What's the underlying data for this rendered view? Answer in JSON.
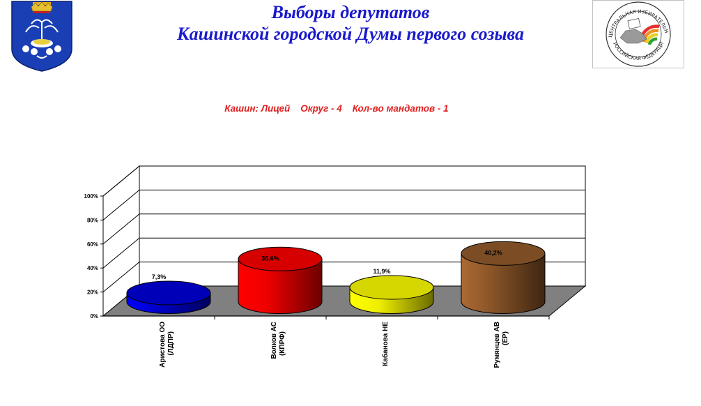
{
  "header": {
    "title_line1": "Выборы депутатов",
    "title_line2": "Кашинской городской Думы первого созыва",
    "seal_text_top": "ЦЕНТРАЛЬНАЯ ИЗБИРАТЕЛЬНАЯ КОМИССИЯ",
    "seal_text_bottom": "РОССИЙСКАЯ ФЕДЕРАЦИЯ"
  },
  "colors": {
    "title": "#1a1acc",
    "subtitle": "#e02020",
    "floor": "#808080"
  },
  "chart_data": {
    "type": "bar",
    "style": "3d-cylinder",
    "title": "Кашин: Лицей    Округ - 4    Кол-во мандатов - 1",
    "categories": [
      [
        "Аристова ОО",
        "(ЛДПР)"
      ],
      [
        "Волков АС",
        "(КПРФ)"
      ],
      [
        "Кабанова НЕ",
        ""
      ],
      [
        "Румянцев АВ",
        "(ЕР)"
      ]
    ],
    "values": [
      7.3,
      35.6,
      11.9,
      40.2
    ],
    "value_labels": [
      "7,3%",
      "35,6%",
      "11,9%",
      "40,2%"
    ],
    "bar_colors": [
      "#0000cc",
      "#ee0000",
      "#eeee00",
      "#8a5528"
    ],
    "ylim": [
      0,
      100
    ],
    "yticks": [
      "0%",
      "20%",
      "40%",
      "60%",
      "80%",
      "100%"
    ],
    "grid": true,
    "legend": "none"
  }
}
